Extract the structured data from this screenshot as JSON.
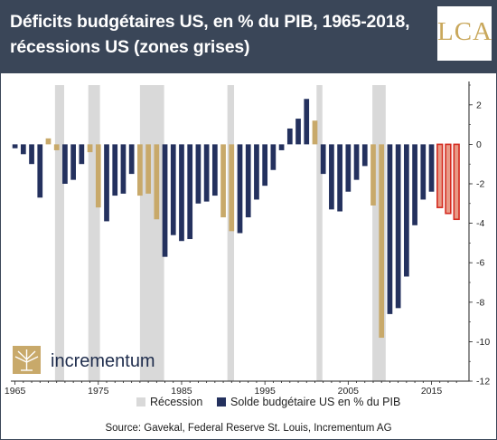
{
  "header": {
    "title": "Déficits budgétaires US, en % du PIB, 1965-2018, récessions US (zones grises)",
    "logo_text": "LCA"
  },
  "brand": {
    "name": "incrementum"
  },
  "source": "Source: Gavekal, Federal Reserve St. Louis, Incrementum AG",
  "colors": {
    "header_bg": "#3a4658",
    "recession": "#d9d9d9",
    "deficit_blue": "#24315e",
    "recession_tan": "#c8a96a",
    "projection_fill": "#e89a86",
    "projection_edge": "#d42a1f",
    "logo_gold": "#c9a85c"
  },
  "chart_data": {
    "type": "bar",
    "title": "Déficits budgétaires US, en % du PIB, 1965-2018, récessions US (zones grises)",
    "xlabel": "",
    "ylabel": "",
    "x_range": [
      1965,
      2018
    ],
    "ylim": [
      -12,
      3
    ],
    "x_ticks": [
      "1965",
      "1975",
      "1985",
      "1995",
      "2005",
      "2015"
    ],
    "y_ticks": [
      "2",
      "0",
      "-2",
      "-4",
      "-6",
      "-8",
      "-10",
      "-12"
    ],
    "y_axis_side": "right",
    "grid": false,
    "legend_position": "bottom",
    "legend": [
      {
        "label": "Récession",
        "kind": "recession"
      },
      {
        "label": "Solde budgétaire US en % du PIB",
        "kind": "deficit"
      }
    ],
    "recessions": [
      [
        1969.8,
        1970.9
      ],
      [
        1973.8,
        1975.2
      ],
      [
        1980.0,
        1982.9
      ],
      [
        1990.5,
        1991.3
      ],
      [
        2001.2,
        2001.9
      ],
      [
        2007.9,
        2009.5
      ]
    ],
    "series": [
      {
        "name": "Solde budgétaire US en % du PIB",
        "x": [
          1965,
          1966,
          1967,
          1968,
          1969,
          1970,
          1971,
          1972,
          1973,
          1974,
          1975,
          1976,
          1977,
          1978,
          1979,
          1980,
          1981,
          1982,
          1983,
          1984,
          1985,
          1986,
          1987,
          1988,
          1989,
          1990,
          1991,
          1992,
          1993,
          1994,
          1995,
          1996,
          1997,
          1998,
          1999,
          2000,
          2001,
          2002,
          2003,
          2004,
          2005,
          2006,
          2007,
          2008,
          2009,
          2010,
          2011,
          2012,
          2013,
          2014,
          2015,
          2016,
          2017,
          2018
        ],
        "values": [
          -0.2,
          -0.5,
          -1.0,
          -2.7,
          0.3,
          -0.3,
          -2.0,
          -1.8,
          -1.0,
          -0.4,
          -3.2,
          -3.9,
          -2.6,
          -2.5,
          -1.5,
          -2.6,
          -2.5,
          -3.8,
          -5.7,
          -4.6,
          -4.9,
          -4.8,
          -3.0,
          -2.9,
          -2.6,
          -3.7,
          -4.4,
          -4.5,
          -3.7,
          -2.8,
          -2.1,
          -1.3,
          -0.3,
          0.8,
          1.3,
          2.3,
          1.2,
          -1.5,
          -3.3,
          -3.4,
          -2.4,
          -1.8,
          -1.1,
          -3.1,
          -9.8,
          -8.6,
          -8.3,
          -6.7,
          -4.1,
          -2.8,
          -2.4,
          -3.2,
          -3.5,
          -3.8
        ],
        "recession_years": [
          1969,
          1970,
          1974,
          1975,
          1980,
          1981,
          1982,
          1990,
          1991,
          2001,
          2008,
          2009
        ],
        "projection_years": [
          2016,
          2017,
          2018
        ]
      }
    ]
  }
}
